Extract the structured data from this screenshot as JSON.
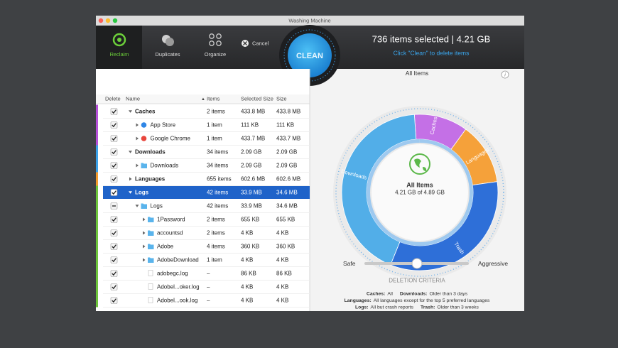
{
  "window": {
    "title": "Washing Machine"
  },
  "toolbar": {
    "tabs": [
      "Reclaim",
      "Duplicates",
      "Organize"
    ],
    "cancel": "Cancel",
    "clean": "CLEAN",
    "summary": "736 items selected | 4.21 GB",
    "hint": "Click \"Clean\" to delete items"
  },
  "table": {
    "columns": [
      "Delete",
      "Name",
      "Items",
      "Selected Size",
      "Size"
    ],
    "rows": [
      [
        "Caches",
        "2 items",
        "433.8 MB",
        "433.8 MB"
      ],
      [
        "App Store",
        "1 item",
        "111 KB",
        "111 KB"
      ],
      [
        "Google Chrome",
        "1 item",
        "433.7 MB",
        "433.7 MB"
      ],
      [
        "Downloads",
        "34 items",
        "2.09 GB",
        "2.09 GB"
      ],
      [
        "Downloads",
        "34 items",
        "2.09 GB",
        "2.09 GB"
      ],
      [
        "Languages",
        "655 items",
        "602.6 MB",
        "602.6 MB"
      ],
      [
        "Logs",
        "42 items",
        "33.9 MB",
        "34.6 MB"
      ],
      [
        "Logs",
        "42 items",
        "33.9 MB",
        "34.6 MB"
      ],
      [
        "1Password",
        "2 items",
        "655 KB",
        "655 KB"
      ],
      [
        "accountsd",
        "2 items",
        "4 KB",
        "4 KB"
      ],
      [
        "Adobe",
        "4 items",
        "360 KB",
        "360 KB"
      ],
      [
        "AdobeDownload",
        "1 item",
        "4 KB",
        "4 KB"
      ],
      [
        "adobegc.log",
        "–",
        "86 KB",
        "86 KB"
      ],
      [
        "Adobel...oker.log",
        "–",
        "4 KB",
        "4 KB"
      ],
      [
        "Adobel...ook.log",
        "–",
        "4 KB",
        "4 KB"
      ]
    ]
  },
  "panel": {
    "heading": "All Items",
    "ring_labels": [
      "Caches",
      "Languages",
      "Downloads",
      "Trash"
    ],
    "center_title": "All Items",
    "center_sub": "4.21 GB of 4.89 GB",
    "slider_left": "Safe",
    "slider_right": "Aggressive",
    "criteria_title": "DELETION CRITERIA",
    "criteria": [
      [
        {
          "key": "Caches:",
          "value": "All"
        },
        {
          "key": "Downloads:",
          "value": "Older than 3 days"
        }
      ],
      [
        {
          "key": "Languages:",
          "value": "All languages except for the top 5 preferred languages"
        }
      ],
      [
        {
          "key": "Logs:",
          "value": "All but crash reports"
        },
        {
          "key": "Trash:",
          "value": "Older than 3 weeks"
        }
      ]
    ]
  }
}
